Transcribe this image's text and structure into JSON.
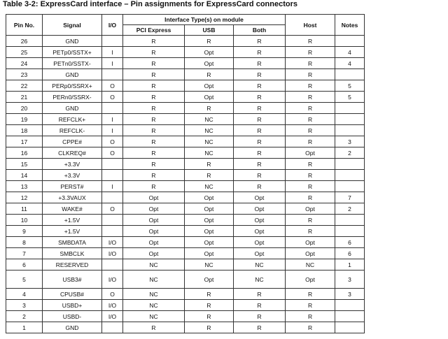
{
  "title": "Table 3-2: ExpressCard interface – Pin assignments for ExpressCard connectors",
  "table": {
    "columns": [
      "Pin No.",
      "Signal",
      "I/O",
      "PCI Express",
      "USB",
      "Both",
      "Host",
      "Notes"
    ],
    "group_header": "Interface Type(s) on module",
    "rows": [
      [
        26,
        "GND",
        null,
        "R",
        "R",
        "R",
        "R",
        null
      ],
      [
        25,
        "PETp0/SSTX+",
        "I",
        "R",
        "Opt",
        "R",
        "R",
        4
      ],
      [
        24,
        "PETn0/SSTX-",
        "I",
        "R",
        "Opt",
        "R",
        "R",
        4
      ],
      [
        23,
        "GND",
        null,
        "R",
        "R",
        "R",
        "R",
        null
      ],
      [
        22,
        "PERp0/SSRX+",
        "O",
        "R",
        "Opt",
        "R",
        "R",
        5
      ],
      [
        21,
        "PERn0/SSRX-",
        "O",
        "R",
        "Opt",
        "R",
        "R",
        5
      ],
      [
        20,
        "GND",
        null,
        "R",
        "R",
        "R",
        "R",
        null
      ],
      [
        19,
        "REFCLK+",
        "I",
        "R",
        "NC",
        "R",
        "R",
        null
      ],
      [
        18,
        "REFCLK-",
        "I",
        "R",
        "NC",
        "R",
        "R",
        null
      ],
      [
        17,
        "CPPE#",
        "O",
        "R",
        "NC",
        "R",
        "R",
        3
      ],
      [
        16,
        "CLKREQ#",
        "O",
        "R",
        "NC",
        "R",
        "Opt",
        2
      ],
      [
        15,
        "+3.3V",
        null,
        "R",
        "R",
        "R",
        "R",
        null
      ],
      [
        14,
        "+3.3V",
        null,
        "R",
        "R",
        "R",
        "R",
        null
      ],
      [
        13,
        "PERST#",
        "I",
        "R",
        "NC",
        "R",
        "R",
        null
      ],
      [
        12,
        "+3.3VAUX",
        null,
        "Opt",
        "Opt",
        "Opt",
        "R",
        7
      ],
      [
        11,
        "WAKE#",
        "O",
        "Opt",
        "Opt",
        "Opt",
        "Opt",
        2
      ],
      [
        10,
        "+1.5V",
        null,
        "Opt",
        "Opt",
        "Opt",
        "R",
        null
      ],
      [
        9,
        "+1.5V",
        null,
        "Opt",
        "Opt",
        "Opt",
        "R",
        null
      ],
      [
        8,
        "SMBDATA",
        "I/O",
        "Opt",
        "Opt",
        "Opt",
        "Opt",
        6
      ],
      [
        7,
        "SMBCLK",
        "I/O",
        "Opt",
        "Opt",
        "Opt",
        "Opt",
        6
      ],
      [
        6,
        "RESERVED",
        null,
        "NC",
        "NC",
        "NC",
        "NC",
        1
      ],
      [
        5,
        "USB3#",
        "I/O",
        "NC",
        "Opt",
        "NC",
        "Opt",
        3
      ],
      [
        4,
        "CPUSB#",
        "O",
        "NC",
        "R",
        "R",
        "R",
        3
      ],
      [
        3,
        "USBD+",
        "I/O",
        "NC",
        "R",
        "R",
        "R",
        null
      ],
      [
        2,
        "USBD-",
        "I/O",
        "NC",
        "R",
        "R",
        "R",
        null
      ],
      [
        1,
        "GND",
        null,
        "R",
        "R",
        "R",
        "R",
        null
      ]
    ]
  }
}
